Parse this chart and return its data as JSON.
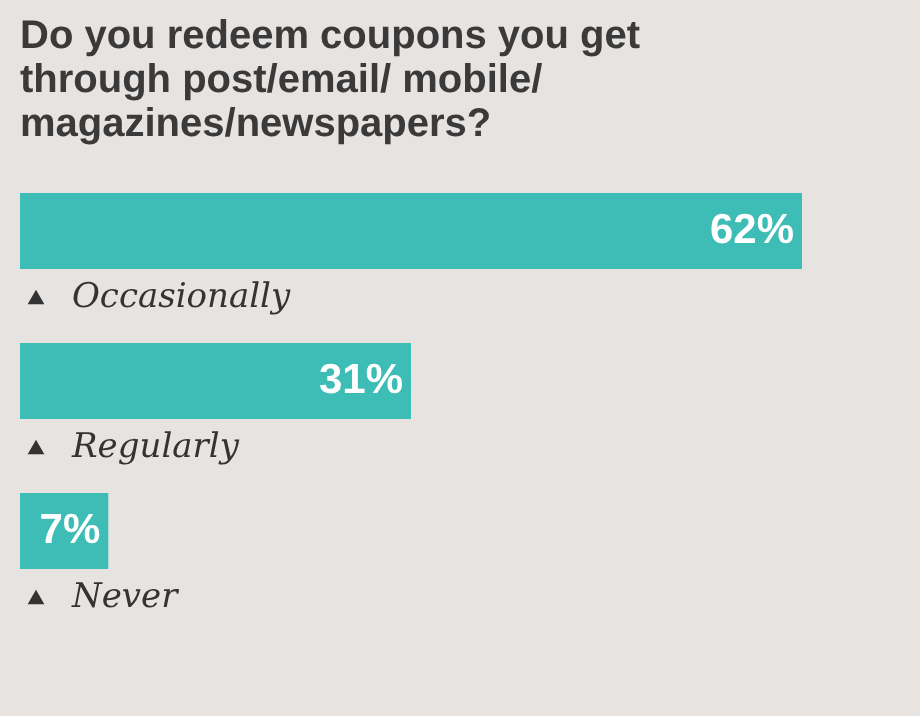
{
  "chart_data": {
    "type": "bar",
    "orientation": "horizontal",
    "title": "Do you redeem coupons you get\nthrough post/email/ mobile/\nmagazines/newspapers?",
    "categories": [
      "Occasionally",
      "Regularly",
      "Never"
    ],
    "values": [
      62,
      31,
      7
    ],
    "value_labels": [
      "62%",
      "31%",
      "7%"
    ],
    "color": "#3dbdb5"
  }
}
